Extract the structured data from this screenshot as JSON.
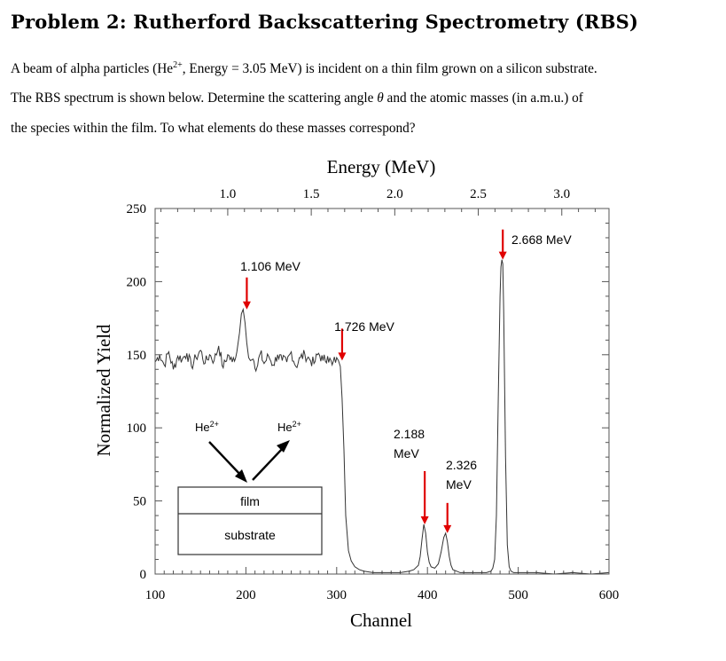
{
  "problem": {
    "title": "Problem 2: Rutherford Backscattering Spectrometry (RBS)",
    "line1_pre": "A beam of alpha particles (He",
    "line1_sup": "2+",
    "line1_post": ", Energy = 3.05 MeV) is incident on a thin film grown on a silicon substrate.",
    "line2_pre": "The RBS spectrum is shown below. Determine the scattering angle ",
    "line2_theta": "θ",
    "line2_post": " and the atomic masses (in a.m.u.) of",
    "line3": "the species within the film. To what elements do these masses correspond?"
  },
  "chart_data": {
    "type": "line",
    "title": "",
    "xlabel": "Channel",
    "ylabel": "Normalized Yield",
    "top_axis_label": "Energy (MeV)",
    "xlim": [
      100,
      600
    ],
    "ylim": [
      0,
      250
    ],
    "x_ticks": [
      "100",
      "200",
      "300",
      "400",
      "500",
      "600"
    ],
    "y_ticks": [
      "0",
      "50",
      "100",
      "150",
      "200",
      "250"
    ],
    "top_ticks": [
      {
        "label": "1.0",
        "channel": 180
      },
      {
        "label": "1.5",
        "channel": 272
      },
      {
        "label": "2.0",
        "channel": 364
      },
      {
        "label": "2.5",
        "channel": 456
      },
      {
        "label": "3.0",
        "channel": 548
      }
    ],
    "series": [
      {
        "color": "#333333",
        "x": [
          100,
          105,
          110,
          115,
          120,
          125,
          130,
          135,
          140,
          145,
          150,
          155,
          160,
          165,
          170,
          175,
          180,
          185,
          190,
          193,
          195,
          197,
          199,
          201,
          203,
          205,
          208,
          212,
          216,
          220,
          225,
          230,
          235,
          240,
          245,
          250,
          255,
          260,
          265,
          270,
          275,
          280,
          285,
          290,
          295,
          300,
          302,
          304,
          306,
          308,
          310,
          313,
          316,
          320,
          325,
          330,
          340,
          350,
          360,
          370,
          380,
          385,
          390,
          392,
          394,
          396,
          398,
          400,
          402,
          404,
          408,
          412,
          415,
          418,
          420,
          422,
          424,
          426,
          428,
          432,
          436,
          440,
          445,
          450,
          455,
          460,
          465,
          470,
          472,
          474,
          476,
          478,
          480,
          481,
          482,
          483,
          484,
          486,
          488,
          490,
          492,
          495,
          500,
          510,
          520,
          540,
          560,
          580,
          600
        ],
        "y": [
          145,
          150,
          143,
          152,
          140,
          149,
          147,
          151,
          142,
          148,
          153,
          144,
          150,
          146,
          156,
          141,
          150,
          145,
          152,
          165,
          178,
          181,
          172,
          158,
          148,
          146,
          147,
          141,
          151,
          144,
          149,
          143,
          150,
          146,
          145,
          152,
          142,
          148,
          150,
          147,
          144,
          151,
          146,
          149,
          143,
          148,
          146,
          142,
          120,
          85,
          40,
          16,
          9,
          5,
          3,
          2,
          1,
          1,
          1,
          1,
          2,
          3,
          6,
          12,
          24,
          34,
          28,
          15,
          8,
          5,
          4,
          7,
          15,
          25,
          28,
          22,
          12,
          6,
          3,
          2,
          1,
          1,
          1,
          1,
          1,
          1,
          1,
          2,
          4,
          10,
          40,
          120,
          190,
          210,
          215,
          212,
          180,
          80,
          20,
          5,
          2,
          1,
          1,
          1,
          1,
          0,
          1,
          0,
          1
        ]
      }
    ],
    "annotations": [
      {
        "label": "1.106 MeV",
        "channel": 201,
        "yield": 181
      },
      {
        "label": "1.726 MeV",
        "channel": 306,
        "yield": 146
      },
      {
        "label": "2.188 MeV",
        "channel": 397,
        "yield": 34
      },
      {
        "label": "2.326 MeV",
        "channel": 422,
        "yield": 28
      },
      {
        "label": "2.668 MeV",
        "channel": 483,
        "yield": 215
      }
    ],
    "grid": false
  },
  "inset": {
    "incident_label": "He",
    "incident_sup": "2+",
    "scattered_label": "He",
    "scattered_sup": "2+",
    "film_label": "film",
    "substrate_label": "substrate"
  }
}
